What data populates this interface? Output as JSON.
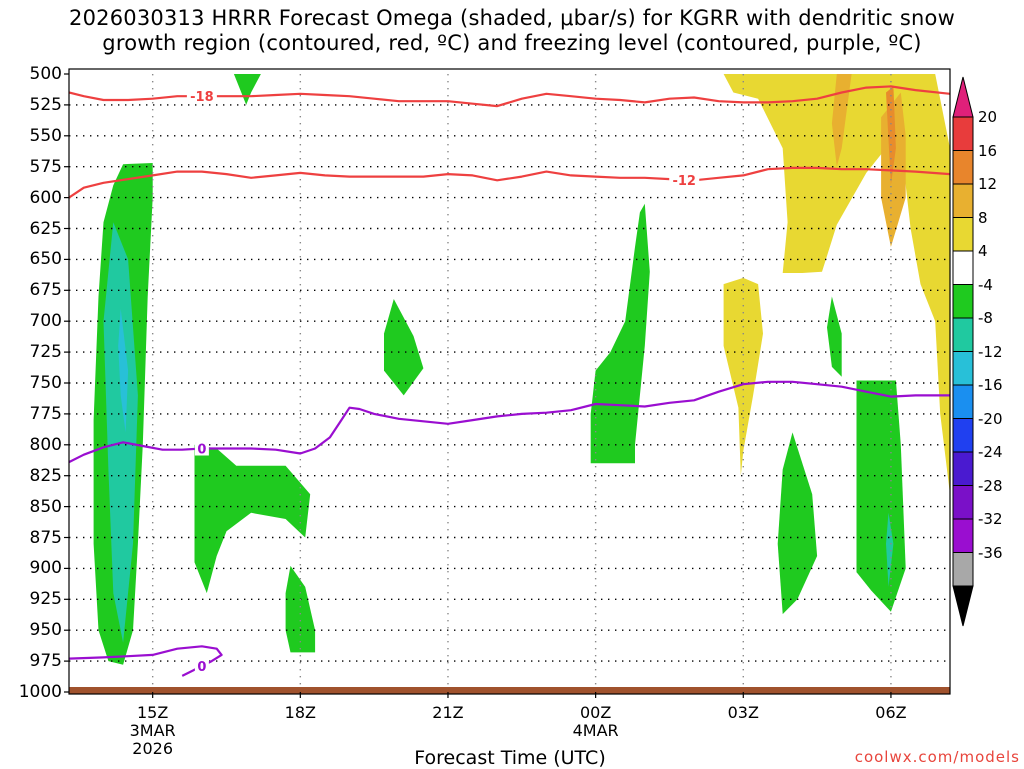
{
  "title_line1": "2026030313 HRRR Forecast Omega (shaded, μbar/s) for KGRR with dendritic snow",
  "title_line2": "growth region (contoured, red, ºC) and freezing level (contoured, purple, ºC)",
  "xlabel": "Forecast Time (UTC)",
  "credit": "coolwx.com/models",
  "colors": {
    "green": "#1fca1f",
    "teal": "#20c9a0",
    "cyan": "#28c0d8",
    "yellow": "#e8d832",
    "orange_light": "#e8b030",
    "orange": "#e88c2c",
    "red": "#ee4040",
    "purple": "#9a0ed0",
    "ground": "#a0522d"
  },
  "chart_data": {
    "type": "heatmap",
    "x_unit": "forecast hour",
    "y_unit": "hPa",
    "xlim": [
      13.3,
      31.2
    ],
    "ylim": [
      1000,
      500
    ],
    "y_ticks": [
      500,
      525,
      550,
      575,
      600,
      625,
      650,
      675,
      700,
      725,
      750,
      775,
      800,
      825,
      850,
      875,
      900,
      925,
      950,
      975,
      1000
    ],
    "x_ticks": [
      {
        "hour": 15,
        "label": "15Z",
        "sub1": "3MAR",
        "sub2": "2026"
      },
      {
        "hour": 18,
        "label": "18Z",
        "sub1": "",
        "sub2": ""
      },
      {
        "hour": 21,
        "label": "21Z",
        "sub1": "",
        "sub2": ""
      },
      {
        "hour": 24,
        "label": "00Z",
        "sub1": "4MAR",
        "sub2": ""
      },
      {
        "hour": 27,
        "label": "03Z",
        "sub1": "",
        "sub2": ""
      },
      {
        "hour": 30,
        "label": "06Z",
        "sub1": "",
        "sub2": ""
      }
    ],
    "grid": true,
    "colorbar": {
      "unit": "μbar/s",
      "labels": [
        "20",
        "16",
        "12",
        "8",
        "4",
        "-4",
        "-8",
        "-12",
        "-16",
        "-20",
        "-24",
        "-28",
        "-32",
        "-36"
      ],
      "colors": [
        "#e83c3c",
        "#e8852c",
        "#e8b030",
        "#e8d832",
        "#ffffff",
        "#1fca1f",
        "#20c9a0",
        "#28c0d8",
        "#1a8ff0",
        "#2040f0",
        "#4a1ad0",
        "#7a10c8",
        "#9a0ed0",
        "#a8a8a8"
      ],
      "top_cap": "#e0207a",
      "bottom_cap": "#000000"
    },
    "omega_regions": [
      {
        "value": -4,
        "color": "#1fca1f",
        "points": [
          [
            14.4,
            573
          ],
          [
            15.0,
            572
          ],
          [
            15.0,
            600
          ],
          [
            14.9,
            680
          ],
          [
            14.8,
            800
          ],
          [
            14.7,
            880
          ],
          [
            14.6,
            950
          ],
          [
            14.4,
            978
          ],
          [
            14.1,
            975
          ],
          [
            13.9,
            950
          ],
          [
            13.8,
            880
          ],
          [
            13.8,
            780
          ],
          [
            13.9,
            680
          ],
          [
            14.0,
            620
          ],
          [
            14.2,
            590
          ]
        ]
      },
      {
        "value": -8,
        "color": "#20c9a0",
        "points": [
          [
            14.2,
            620
          ],
          [
            14.5,
            650
          ],
          [
            14.7,
            760
          ],
          [
            14.6,
            880
          ],
          [
            14.4,
            960
          ],
          [
            14.2,
            920
          ],
          [
            14.1,
            820
          ],
          [
            14.0,
            700
          ]
        ]
      },
      {
        "value": -12,
        "color": "#28c0d8",
        "points": [
          [
            14.35,
            690
          ],
          [
            14.5,
            740
          ],
          [
            14.45,
            790
          ],
          [
            14.35,
            760
          ],
          [
            14.3,
            720
          ]
        ]
      },
      {
        "value": -4,
        "color": "#1fca1f",
        "points": [
          [
            15.85,
            800
          ],
          [
            16.3,
            803
          ],
          [
            16.7,
            817
          ],
          [
            17.7,
            817
          ],
          [
            18.2,
            840
          ],
          [
            18.1,
            875
          ],
          [
            17.7,
            860
          ],
          [
            17.0,
            855
          ],
          [
            16.5,
            870
          ],
          [
            16.3,
            890
          ],
          [
            16.1,
            920
          ],
          [
            15.85,
            895
          ]
        ]
      },
      {
        "value": -4,
        "color": "#1fca1f",
        "points": [
          [
            17.8,
            898
          ],
          [
            18.1,
            915
          ],
          [
            18.3,
            950
          ],
          [
            18.3,
            968
          ],
          [
            17.8,
            968
          ],
          [
            17.7,
            950
          ],
          [
            17.7,
            920
          ]
        ]
      },
      {
        "value": -4,
        "color": "#1fca1f",
        "points": [
          [
            16.65,
            500
          ],
          [
            17.2,
            500
          ],
          [
            17.0,
            515
          ],
          [
            16.9,
            525
          ],
          [
            16.8,
            515
          ]
        ]
      },
      {
        "value": -4,
        "color": "#1fca1f",
        "points": [
          [
            19.9,
            682
          ],
          [
            20.3,
            712
          ],
          [
            20.5,
            738
          ],
          [
            20.1,
            760
          ],
          [
            19.7,
            740
          ],
          [
            19.7,
            710
          ]
        ]
      },
      {
        "value": -4,
        "color": "#1fca1f",
        "points": [
          [
            24.9,
            612
          ],
          [
            25.0,
            605
          ],
          [
            25.1,
            660
          ],
          [
            25.0,
            720
          ],
          [
            24.8,
            800
          ],
          [
            24.8,
            815
          ],
          [
            23.9,
            815
          ],
          [
            23.9,
            775
          ],
          [
            24.0,
            740
          ],
          [
            24.3,
            725
          ],
          [
            24.6,
            700
          ],
          [
            24.8,
            640
          ]
        ]
      },
      {
        "value": -4,
        "color": "#1fca1f",
        "points": [
          [
            28.8,
            680
          ],
          [
            29.0,
            710
          ],
          [
            29.0,
            745
          ],
          [
            28.8,
            737
          ],
          [
            28.7,
            705
          ]
        ]
      },
      {
        "value": -4,
        "color": "#1fca1f",
        "points": [
          [
            28.0,
            790
          ],
          [
            28.4,
            840
          ],
          [
            28.5,
            890
          ],
          [
            28.1,
            925
          ],
          [
            27.8,
            937
          ],
          [
            27.7,
            880
          ],
          [
            27.8,
            820
          ]
        ]
      },
      {
        "value": -4,
        "color": "#1fca1f",
        "points": [
          [
            29.3,
            748
          ],
          [
            30.1,
            748
          ],
          [
            30.2,
            800
          ],
          [
            30.3,
            900
          ],
          [
            30.0,
            935
          ],
          [
            29.6,
            918
          ],
          [
            29.3,
            903
          ],
          [
            29.3,
            830
          ]
        ]
      },
      {
        "value": -8,
        "color": "#20c9a0",
        "points": [
          [
            29.95,
            855
          ],
          [
            30.05,
            880
          ],
          [
            29.95,
            915
          ],
          [
            29.9,
            880
          ]
        ]
      },
      {
        "value": 4,
        "color": "#e8d832",
        "points": [
          [
            26.6,
            500
          ],
          [
            30.9,
            500
          ],
          [
            31.2,
            560
          ],
          [
            31.2,
            840
          ],
          [
            31.0,
            775
          ],
          [
            30.9,
            700
          ],
          [
            30.6,
            670
          ],
          [
            30.4,
            625
          ],
          [
            30.2,
            555
          ],
          [
            29.9,
            560
          ],
          [
            29.5,
            580
          ],
          [
            28.9,
            622
          ],
          [
            28.6,
            660
          ],
          [
            28.2,
            661
          ],
          [
            27.8,
            661
          ],
          [
            27.9,
            620
          ],
          [
            27.8,
            560
          ],
          [
            27.3,
            520
          ],
          [
            26.8,
            515
          ]
        ]
      },
      {
        "value": 4,
        "color": "#e8d832",
        "points": [
          [
            27.0,
            665
          ],
          [
            27.3,
            670
          ],
          [
            27.4,
            710
          ],
          [
            27.2,
            760
          ],
          [
            27.0,
            805
          ],
          [
            26.95,
            825
          ],
          [
            26.9,
            770
          ],
          [
            26.6,
            720
          ],
          [
            26.6,
            670
          ]
        ]
      },
      {
        "value": 8,
        "color": "#e8b030",
        "points": [
          [
            28.9,
            500
          ],
          [
            29.2,
            500
          ],
          [
            29.0,
            560
          ],
          [
            28.9,
            575
          ],
          [
            28.8,
            540
          ]
        ]
      },
      {
        "value": 8,
        "color": "#e8b030",
        "points": [
          [
            29.8,
            535
          ],
          [
            30.2,
            515
          ],
          [
            30.3,
            550
          ],
          [
            30.3,
            600
          ],
          [
            30.0,
            640
          ],
          [
            29.8,
            600
          ]
        ]
      },
      {
        "value": 12,
        "color": "#e88c2c",
        "points": [
          [
            29.9,
            515
          ],
          [
            30.05,
            510
          ],
          [
            30.1,
            560
          ],
          [
            30.0,
            590
          ]
        ]
      }
    ],
    "series": [
      {
        "name": "-18",
        "color": "#ee4040",
        "label_at_hour": 16.0,
        "x": [
          13.3,
          13.6,
          14.0,
          14.5,
          15.0,
          15.5,
          16.0,
          16.5,
          17.0,
          17.5,
          18.0,
          18.5,
          19.0,
          19.5,
          20.0,
          20.5,
          21.0,
          21.5,
          22.0,
          22.5,
          23.0,
          23.5,
          24.0,
          24.5,
          25.0,
          25.5,
          26.0,
          26.5,
          27.0,
          27.5,
          28.0,
          28.5,
          29.0,
          29.5,
          30.0,
          30.5,
          31.2
        ],
        "y": [
          515,
          518,
          521,
          521,
          520,
          518,
          518,
          518,
          518,
          517,
          516,
          517,
          518,
          520,
          522,
          522,
          522,
          524,
          526,
          520,
          516,
          518,
          520,
          521,
          523,
          520,
          519,
          522,
          523,
          523,
          522,
          520,
          515,
          511,
          510,
          513,
          516
        ]
      },
      {
        "name": "-12",
        "color": "#ee4040",
        "label_at_hour": 25.8,
        "x": [
          13.3,
          13.6,
          14.0,
          14.5,
          15.0,
          15.5,
          16.0,
          16.5,
          17.0,
          17.5,
          18.0,
          18.5,
          19.0,
          19.5,
          20.0,
          20.5,
          21.0,
          21.5,
          22.0,
          22.5,
          23.0,
          23.5,
          24.0,
          24.5,
          25.0,
          25.5,
          26.0,
          26.5,
          27.0,
          27.5,
          28.0,
          28.5,
          29.0,
          29.5,
          30.0,
          30.5,
          31.2
        ],
        "y": [
          600,
          592,
          588,
          585,
          582,
          579,
          579,
          581,
          584,
          582,
          580,
          582,
          583,
          583,
          583,
          583,
          581,
          582,
          586,
          583,
          579,
          582,
          583,
          584,
          584,
          585,
          586,
          584,
          582,
          577,
          576,
          576,
          577,
          577,
          578,
          579,
          581
        ]
      },
      {
        "name": "0",
        "color": "#9a0ed0",
        "label_at_hour": 16.0,
        "x": [
          13.3,
          13.6,
          14.0,
          14.4,
          14.8,
          15.2,
          15.6,
          16.0,
          16.5,
          17.0,
          17.5,
          18.0,
          18.3,
          18.6,
          18.8,
          19.0,
          19.2,
          19.5,
          20.0,
          20.5,
          21.0,
          21.5,
          22.0,
          22.5,
          23.0,
          23.5,
          24.0,
          24.5,
          25.0,
          25.5,
          26.0,
          26.5,
          27.0,
          27.5,
          28.0,
          28.5,
          29.0,
          29.5,
          30.0,
          30.5,
          31.2
        ],
        "y": [
          814,
          808,
          802,
          798,
          801,
          804,
          804,
          803,
          803,
          803,
          804,
          807,
          803,
          794,
          782,
          770,
          771,
          775,
          779,
          781,
          783,
          780,
          777,
          775,
          774,
          772,
          767,
          768,
          769,
          766,
          764,
          757,
          751,
          749,
          749,
          751,
          753,
          757,
          761,
          760,
          760
        ]
      },
      {
        "name": "0",
        "color": "#9a0ed0",
        "label_at_hour": 16.0,
        "x": [
          13.3,
          14.0,
          14.5,
          15.0,
          15.5,
          16.0,
          16.3,
          16.4,
          16.2,
          15.9,
          15.6
        ],
        "y": [
          973,
          972,
          971,
          970,
          965,
          963,
          965,
          970,
          975,
          981,
          987
        ]
      }
    ]
  }
}
